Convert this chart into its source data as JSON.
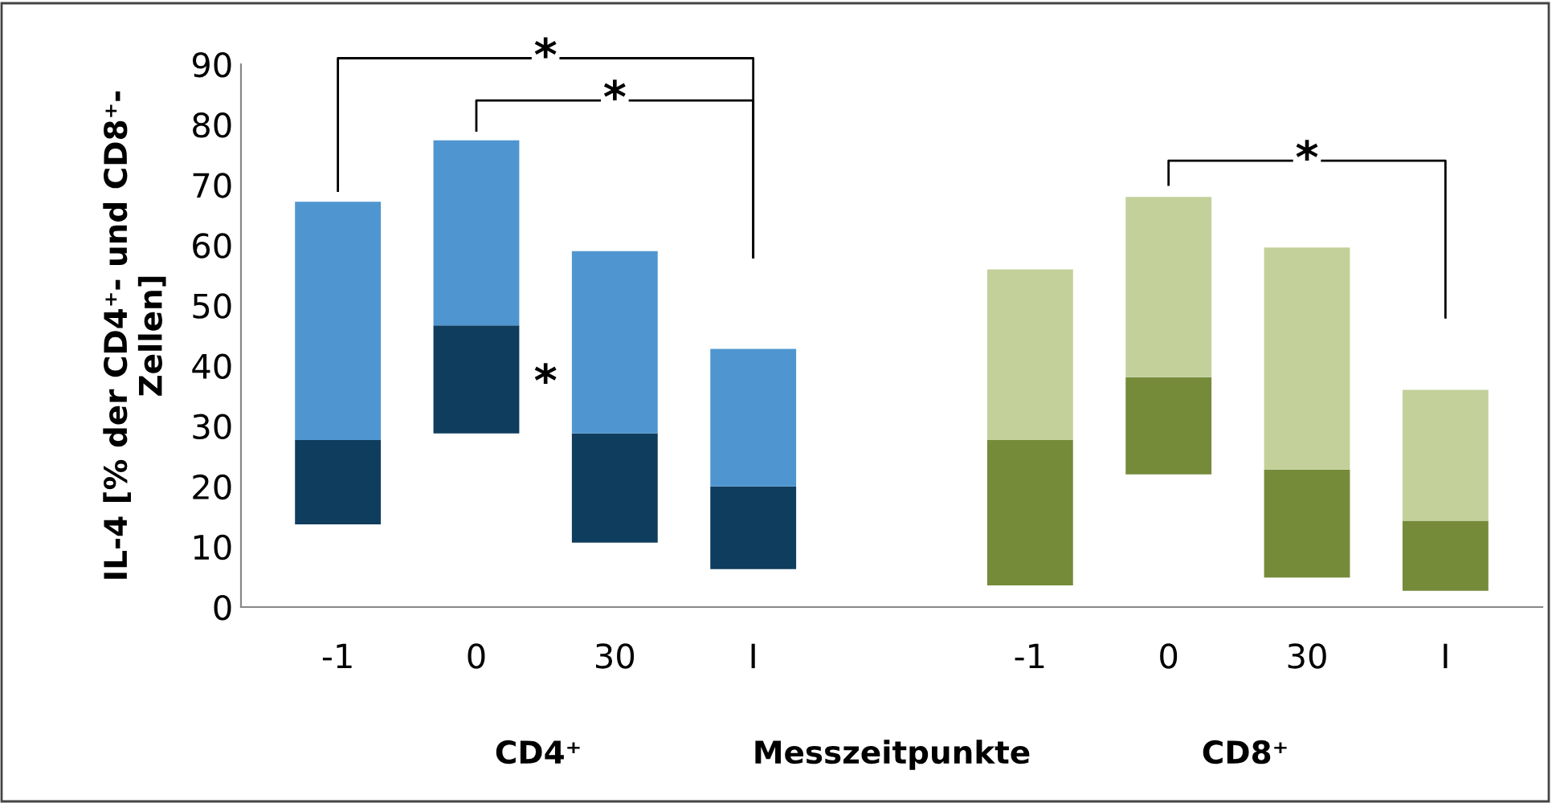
{
  "chart_data": {
    "type": "bar",
    "ylabel": "IL-4 [% der CD4⁺- und CD8⁺-\nZellen]",
    "xlabel": "Messzeitpunkte",
    "categories": [
      "-1",
      "0",
      "30",
      "I",
      null,
      "-1",
      "0",
      "30",
      "I"
    ],
    "series": [
      {
        "colors": [
          "#0f3d5e",
          "#0f3d5e",
          "#0f3d5e",
          "#0f3d5e",
          null,
          "#758b3a",
          "#758b3a",
          "#758b3a",
          "#758b3a"
        ],
        "base": [
          13.7,
          28.8,
          10.7,
          6.3,
          null,
          3.6,
          22,
          4.9,
          2.7
        ],
        "values": [
          14.0,
          17.9,
          18.1,
          13.7,
          null,
          24.1,
          16.1,
          17.9,
          11.6
        ]
      },
      {
        "colors": [
          "#4f96d0",
          "#4f96d0",
          "#4f96d0",
          "#4f96d0",
          null,
          "#c3d09a",
          "#c3d09a",
          "#c3d09a",
          "#c3d09a"
        ],
        "base": [
          27.7,
          46.7,
          28.8,
          20.0,
          null,
          27.7,
          38.1,
          22.8,
          14.3
        ],
        "values": [
          39.5,
          30.7,
          30.2,
          22.8,
          null,
          28.3,
          29.9,
          36.8,
          21.7
        ]
      }
    ],
    "ylim": [
      0,
      90
    ],
    "yticks": [
      0,
      10,
      20,
      30,
      40,
      50,
      60,
      70,
      80,
      90
    ],
    "grid": false,
    "annotations": [
      "*",
      "*",
      "*",
      "*",
      "CD4⁺",
      "CD8⁺"
    ]
  }
}
